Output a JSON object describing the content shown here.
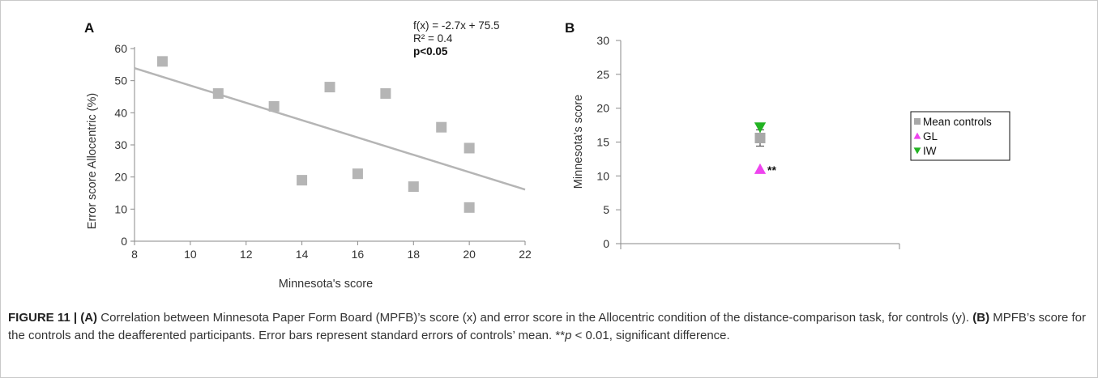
{
  "chart_data": [
    {
      "type": "scatter",
      "panel_label": "A",
      "title": "",
      "xlabel": "Minnesota's score",
      "ylabel": "Error score Allocentric (%)",
      "xlim": [
        8,
        22
      ],
      "ylim": [
        0,
        60
      ],
      "xticks": [
        8,
        10,
        12,
        14,
        16,
        18,
        20,
        22
      ],
      "yticks": [
        0,
        10,
        20,
        30,
        40,
        50,
        60
      ],
      "grid": false,
      "points": [
        {
          "x": 9,
          "y": 56
        },
        {
          "x": 11,
          "y": 46
        },
        {
          "x": 13,
          "y": 42
        },
        {
          "x": 14,
          "y": 19
        },
        {
          "x": 15,
          "y": 48
        },
        {
          "x": 16,
          "y": 21
        },
        {
          "x": 17,
          "y": 46
        },
        {
          "x": 18,
          "y": 17
        },
        {
          "x": 19,
          "y": 35.5
        },
        {
          "x": 20,
          "y": 29
        },
        {
          "x": 20,
          "y": 10.5
        }
      ],
      "marker_color": "#b5b5b5",
      "trendline": {
        "slope": -2.7,
        "intercept": 75.5,
        "x_range": [
          8,
          22
        ],
        "color": "#b5b5b5"
      },
      "annotations": [
        "f(x) = -2.7x + 75.5",
        "R² = 0.4",
        "p<0.05"
      ]
    },
    {
      "type": "scatter",
      "panel_label": "B",
      "title": "",
      "xlabel": "",
      "ylabel": "Minnesota's score",
      "ylim": [
        0,
        30
      ],
      "yticks": [
        0,
        5,
        10,
        15,
        20,
        25,
        30
      ],
      "grid": false,
      "legend_position": "right",
      "series": [
        {
          "name": "Mean controls",
          "y": 15.6,
          "error": 1.2,
          "marker": "square",
          "color": "#a8a8a8"
        },
        {
          "name": "GL",
          "y": 11,
          "marker": "triangle-up",
          "color": "#ee44ee",
          "annotation": "**"
        },
        {
          "name": "IW",
          "y": 17.2,
          "marker": "triangle-down",
          "color": "#22b322"
        }
      ]
    }
  ],
  "caption": {
    "figure_label": "FIGURE 11 |",
    "label_a": "(A)",
    "text_a": "Correlation between Minnesota Paper Form Board (MPFB)’s score (x) and error score in the Allocentric condition of the distance-comparison task, for controls (y).",
    "label_b": "(B)",
    "text_b": "MPFB’s score for the controls and the deafferented participants. Error bars represent standard errors of controls’ mean.",
    "stars": "**",
    "p_symbol": "p",
    "p_text": "< 0.01, significant difference."
  }
}
